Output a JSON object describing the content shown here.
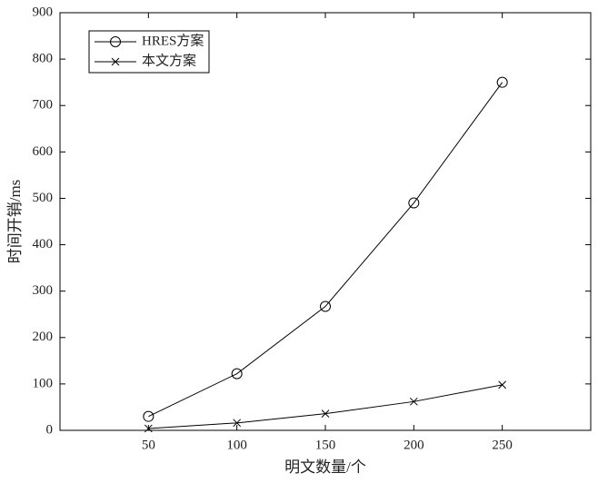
{
  "chart_data": {
    "type": "line",
    "x_label": "明文数量/个",
    "y_label": "时间开销/ms",
    "x": [
      50,
      100,
      150,
      200,
      250
    ],
    "xlim": [
      0,
      300
    ],
    "xticks": [
      50,
      100,
      150,
      200,
      250
    ],
    "ylim": [
      0,
      900
    ],
    "yticks": [
      0,
      100,
      200,
      300,
      400,
      500,
      600,
      700,
      800,
      900
    ],
    "legend": "upper left",
    "series": [
      {
        "name": "HRES方案",
        "color": "#000000",
        "marker": "circle",
        "values": [
          30,
          122,
          267,
          490,
          750
        ]
      },
      {
        "name": "本文方案",
        "color": "#000000",
        "marker": "x",
        "values": [
          4,
          16,
          36,
          62,
          98
        ]
      }
    ]
  }
}
